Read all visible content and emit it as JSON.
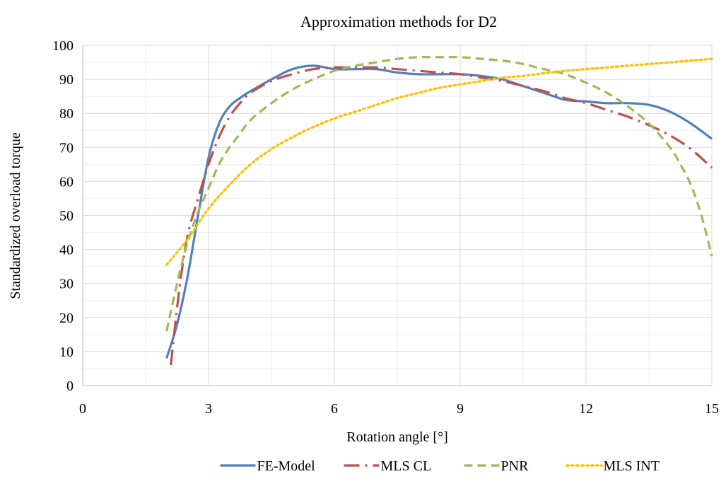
{
  "chart_data": {
    "type": "line",
    "title": "Approximation methods for D2",
    "xlabel": "Rotation angle [°]",
    "ylabel": "Standardized overload torque",
    "xlim": [
      0,
      15
    ],
    "ylim": [
      0,
      100
    ],
    "x_ticks": [
      0,
      3,
      6,
      9,
      12,
      15
    ],
    "x_tick_labels": [
      "0",
      "3",
      "6",
      "9",
      "12",
      "15"
    ],
    "y_ticks": [
      0,
      10,
      20,
      30,
      40,
      50,
      60,
      70,
      80,
      90,
      100
    ],
    "y_tick_labels": [
      "0",
      "10",
      "20",
      "30",
      "40",
      "50",
      "60",
      "70",
      "80",
      "90",
      "100"
    ],
    "grid": {
      "major": true,
      "minor": true
    },
    "legend_position": "bottom",
    "series": [
      {
        "name": "FE-Model",
        "color": "#4f81bd",
        "dash": "solid",
        "x": [
          2.0,
          2.25,
          2.5,
          2.75,
          3.0,
          3.25,
          3.5,
          3.75,
          4.0,
          4.5,
          5.0,
          5.5,
          6.0,
          6.5,
          7.0,
          7.5,
          8.0,
          8.5,
          9.0,
          9.5,
          10.0,
          10.5,
          11.0,
          11.5,
          12.0,
          12.5,
          13.0,
          13.5,
          14.0,
          14.5,
          15.0
        ],
        "y": [
          8,
          18,
          32,
          50,
          67,
          77,
          82,
          84.5,
          86.5,
          90,
          93,
          94,
          93,
          93,
          93,
          92,
          91.5,
          91.5,
          91.5,
          91,
          90,
          88,
          86,
          84,
          83.5,
          83,
          83,
          82.5,
          80.5,
          77,
          72.5
        ]
      },
      {
        "name": "MLS CL",
        "color": "#c0504d",
        "dash": "dashdot",
        "x": [
          2.1,
          2.3,
          2.5,
          2.75,
          3.0,
          3.25,
          3.5,
          3.75,
          4.0,
          4.5,
          5.0,
          5.5,
          6.0,
          6.5,
          7.0,
          7.5,
          8.0,
          8.5,
          9.0,
          9.5,
          10.0,
          10.5,
          11.0,
          11.5,
          12.0,
          12.5,
          13.0,
          13.5,
          14.0,
          14.5,
          15.0
        ],
        "y": [
          6,
          28,
          44,
          55,
          65,
          73,
          79,
          83,
          86,
          89.5,
          91.5,
          93,
          93.5,
          93.5,
          93.5,
          93,
          92.5,
          92,
          91.5,
          90.5,
          89.5,
          88,
          86.5,
          84.5,
          83,
          81,
          79,
          76.5,
          73.5,
          69.5,
          64
        ]
      },
      {
        "name": "PNR",
        "color": "#9bbb59",
        "dash": "dashed",
        "x": [
          2.0,
          2.25,
          2.5,
          2.75,
          3.0,
          3.25,
          3.5,
          3.75,
          4.0,
          4.5,
          5.0,
          5.5,
          6.0,
          6.5,
          7.0,
          7.5,
          8.0,
          8.5,
          9.0,
          9.5,
          10.0,
          10.5,
          11.0,
          11.5,
          12.0,
          12.5,
          13.0,
          13.5,
          14.0,
          14.25,
          14.5,
          14.75,
          15.0
        ],
        "y": [
          16,
          30,
          42,
          51,
          58,
          65,
          70,
          74,
          78,
          83,
          87,
          90,
          92.5,
          94,
          95,
          96,
          96.5,
          96.5,
          96.5,
          96,
          95.5,
          94.5,
          93,
          91.5,
          89,
          86,
          82,
          77,
          70,
          65,
          59,
          50,
          38
        ]
      },
      {
        "name": "MLS INT",
        "color": "#ffc000",
        "dash": "dotted",
        "x": [
          2.0,
          2.5,
          3.0,
          3.5,
          4.0,
          4.5,
          5.0,
          5.5,
          6.0,
          6.5,
          7.0,
          7.5,
          8.0,
          8.5,
          9.0,
          9.5,
          10.0,
          10.5,
          11.0,
          11.5,
          12.0,
          12.5,
          13.0,
          13.5,
          14.0,
          14.5,
          15.0
        ],
        "y": [
          35.5,
          43,
          52,
          59,
          65,
          69.5,
          73,
          76,
          78.5,
          80.5,
          82.5,
          84.5,
          86,
          87.5,
          88.5,
          89.5,
          90.5,
          91,
          91.8,
          92.5,
          93,
          93.5,
          94,
          94.5,
          95,
          95.5,
          96
        ]
      }
    ]
  }
}
